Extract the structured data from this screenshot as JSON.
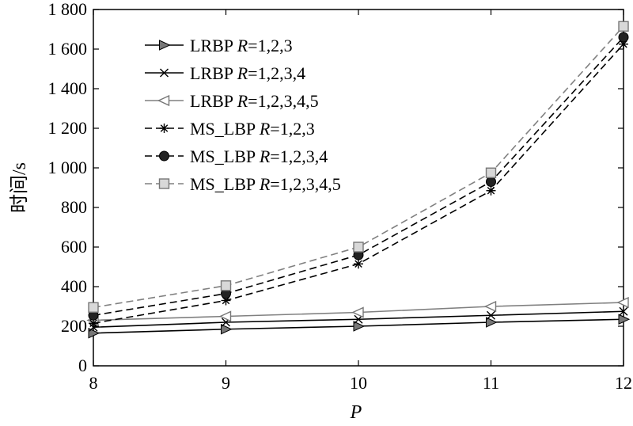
{
  "chart_data": {
    "type": "line",
    "title": "",
    "xlabel": "P",
    "ylabel": "时间/s",
    "x": [
      8,
      9,
      10,
      11,
      12
    ],
    "xticks": [
      "8",
      "9",
      "10",
      "11",
      "12"
    ],
    "xlim": [
      8,
      12
    ],
    "ylim": [
      0,
      1800
    ],
    "yticks": [
      {
        "value": 0,
        "label": "0"
      },
      {
        "value": 200,
        "label": "200"
      },
      {
        "value": 400,
        "label": "400"
      },
      {
        "value": 600,
        "label": "600"
      },
      {
        "value": 800,
        "label": "800"
      },
      {
        "value": 1000,
        "label": "1 000"
      },
      {
        "value": 1200,
        "label": "1 200"
      },
      {
        "value": 1400,
        "label": "1 400"
      },
      {
        "value": 1600,
        "label": "1 600"
      },
      {
        "value": 1800,
        "label": "1 800"
      }
    ],
    "grid": false,
    "legend_position": "top-left",
    "series": [
      {
        "name_prefix": "LRBP ",
        "name_var": "R",
        "name_suffix": "=1,2,3",
        "values": [
          165,
          185,
          200,
          220,
          235
        ],
        "color": "#000000",
        "dash": "solid",
        "marker": "triangle-right"
      },
      {
        "name_prefix": "LRBP ",
        "name_var": "R",
        "name_suffix": "=1,2,3,4",
        "values": [
          195,
          220,
          235,
          255,
          275
        ],
        "color": "#000000",
        "dash": "solid",
        "marker": "x"
      },
      {
        "name_prefix": "LRBP ",
        "name_var": "R",
        "name_suffix": "=1,2,3,4,5",
        "values": [
          230,
          250,
          270,
          300,
          320
        ],
        "color": "#808080",
        "dash": "solid",
        "marker": "triangle-left"
      },
      {
        "name_prefix": "MS_LBP ",
        "name_var": "R",
        "name_suffix": "=1,2,3",
        "values": [
          215,
          330,
          515,
          885,
          1625
        ],
        "color": "#000000",
        "dash": "dashed",
        "marker": "star"
      },
      {
        "name_prefix": "MS_LBP ",
        "name_var": "R",
        "name_suffix": "=1,2,3,4",
        "values": [
          255,
          365,
          560,
          930,
          1660
        ],
        "color": "#000000",
        "dash": "dashed",
        "marker": "circle"
      },
      {
        "name_prefix": "MS_LBP ",
        "name_var": "R",
        "name_suffix": "=1,2,3,4,5",
        "values": [
          295,
          405,
          600,
          975,
          1715
        ],
        "color": "#808080",
        "dash": "dashed",
        "marker": "square"
      }
    ]
  }
}
